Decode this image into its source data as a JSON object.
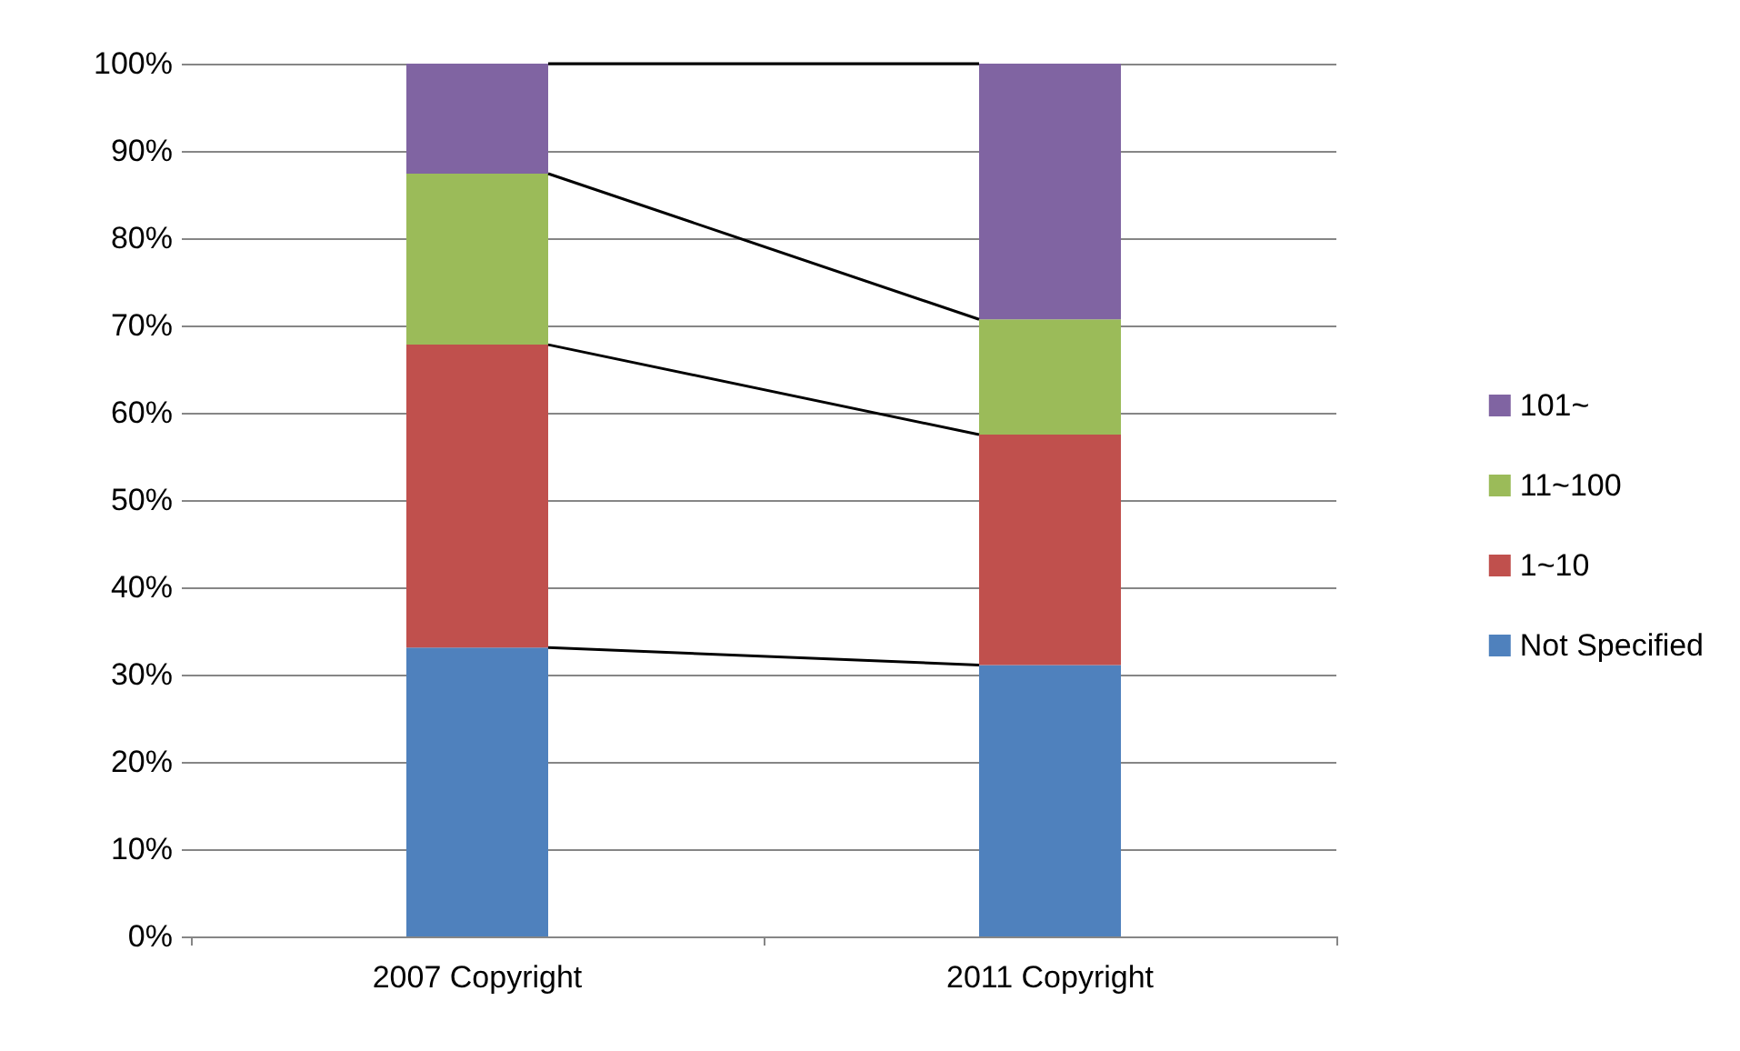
{
  "chart_data": {
    "type": "bar",
    "stacked": true,
    "categories": [
      "2007 Copyright",
      "2011 Copyright"
    ],
    "series": [
      {
        "name": "Not Specified",
        "color": "#4f81bd",
        "values": [
          33.1,
          31.1
        ]
      },
      {
        "name": "1~10",
        "color": "#c0504d",
        "values": [
          34.7,
          26.4
        ]
      },
      {
        "name": "11~100",
        "color": "#9bbb59",
        "values": [
          19.6,
          13.2
        ]
      },
      {
        "name": "101~",
        "color": "#8064a2",
        "values": [
          12.6,
          29.3
        ]
      }
    ],
    "ylim": [
      0,
      100
    ],
    "yticks": [
      {
        "value": 0,
        "label": "0%"
      },
      {
        "value": 10,
        "label": "10%"
      },
      {
        "value": 20,
        "label": "20%"
      },
      {
        "value": 30,
        "label": "30%"
      },
      {
        "value": 40,
        "label": "40%"
      },
      {
        "value": 50,
        "label": "50%"
      },
      {
        "value": 60,
        "label": "60%"
      },
      {
        "value": 70,
        "label": "70%"
      },
      {
        "value": 80,
        "label": "80%"
      },
      {
        "value": 90,
        "label": "90%"
      },
      {
        "value": 100,
        "label": "100%"
      }
    ],
    "grid": "y",
    "legend": "right"
  }
}
